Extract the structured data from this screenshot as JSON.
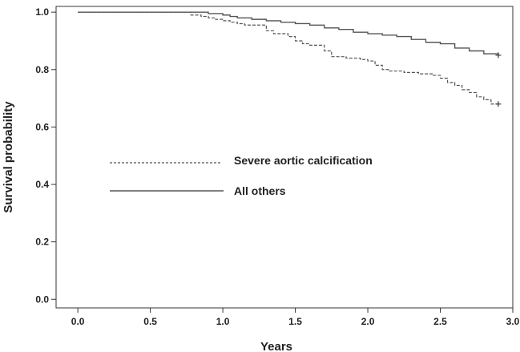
{
  "chart_data": {
    "type": "line",
    "title": "",
    "xlabel": "Years",
    "ylabel": "Survival probability",
    "xlim": [
      -0.15,
      3.0
    ],
    "ylim": [
      -0.03,
      1.02
    ],
    "xticks": [
      0.0,
      0.5,
      1.0,
      1.5,
      2.0,
      2.5,
      3.0
    ],
    "xtick_labels": [
      "0.0",
      "0.5",
      "1.0",
      "1.5",
      "2.0",
      "2.5",
      "3.0"
    ],
    "yticks": [
      0.0,
      0.2,
      0.4,
      0.6,
      0.8,
      1.0
    ],
    "ytick_labels": [
      "0.0",
      "0.2",
      "0.4",
      "0.6",
      "0.8",
      "1.0"
    ],
    "grid": false,
    "legend_position": "center-left",
    "series": [
      {
        "name": "Severe aortic calcification",
        "style": "dashed",
        "color": "#555555",
        "x": [
          0.0,
          0.75,
          0.78,
          0.85,
          0.9,
          0.95,
          1.0,
          1.05,
          1.1,
          1.15,
          1.2,
          1.3,
          1.35,
          1.45,
          1.5,
          1.55,
          1.6,
          1.7,
          1.75,
          1.85,
          1.95,
          2.0,
          2.05,
          2.1,
          2.15,
          2.2,
          2.25,
          2.35,
          2.45,
          2.5,
          2.55,
          2.6,
          2.65,
          2.7,
          2.75,
          2.8,
          2.85,
          2.9
        ],
        "y": [
          1.0,
          1.0,
          0.99,
          0.985,
          0.98,
          0.975,
          0.97,
          0.965,
          0.96,
          0.955,
          0.955,
          0.935,
          0.925,
          0.915,
          0.9,
          0.89,
          0.885,
          0.865,
          0.845,
          0.84,
          0.835,
          0.83,
          0.815,
          0.8,
          0.795,
          0.795,
          0.79,
          0.785,
          0.78,
          0.77,
          0.755,
          0.745,
          0.73,
          0.72,
          0.705,
          0.695,
          0.68,
          0.68
        ]
      },
      {
        "name": "All others",
        "style": "solid",
        "color": "#555555",
        "x": [
          0.0,
          0.8,
          0.9,
          1.0,
          1.05,
          1.1,
          1.2,
          1.3,
          1.4,
          1.5,
          1.6,
          1.7,
          1.8,
          1.9,
          2.0,
          2.1,
          2.2,
          2.3,
          2.4,
          2.5,
          2.6,
          2.7,
          2.8,
          2.9
        ],
        "y": [
          1.0,
          1.0,
          0.995,
          0.99,
          0.985,
          0.98,
          0.975,
          0.97,
          0.965,
          0.96,
          0.955,
          0.945,
          0.94,
          0.93,
          0.925,
          0.92,
          0.915,
          0.905,
          0.895,
          0.89,
          0.875,
          0.865,
          0.855,
          0.85
        ]
      }
    ],
    "censor_marks": [
      {
        "series": "Severe aortic calcification",
        "x": 2.9,
        "y": 0.68
      },
      {
        "series": "All others",
        "x": 2.9,
        "y": 0.85
      }
    ]
  }
}
